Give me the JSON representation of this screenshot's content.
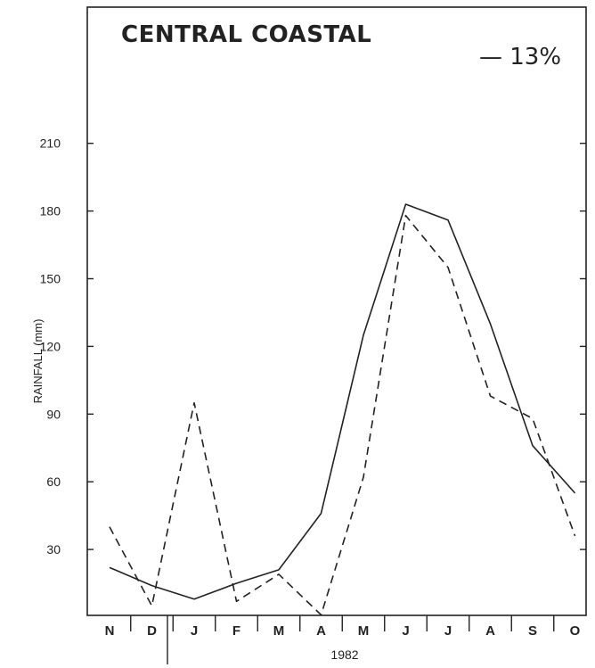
{
  "chart_data": {
    "type": "line",
    "title": "CENTRAL COASTAL",
    "annotation": "— 13%",
    "ylabel": "RAINFALL (mm)",
    "year_label": "1982",
    "categories": [
      "N",
      "D",
      "J",
      "F",
      "M",
      "A",
      "M",
      "J",
      "J",
      "A",
      "S",
      "O"
    ],
    "ylim": [
      0,
      240
    ],
    "yticks": [
      "30",
      "60",
      "90",
      "120",
      "150",
      "180",
      "210"
    ],
    "series": [
      {
        "style": "solid",
        "values": [
          22,
          14,
          8,
          15,
          21,
          46,
          125,
          183,
          176,
          130,
          76,
          55
        ]
      },
      {
        "style": "dashed",
        "values": [
          40,
          5,
          95,
          7,
          19,
          1,
          62,
          178,
          155,
          98,
          88,
          36
        ]
      }
    ],
    "colors": {
      "line": "#222222",
      "axis": "#222222"
    }
  }
}
